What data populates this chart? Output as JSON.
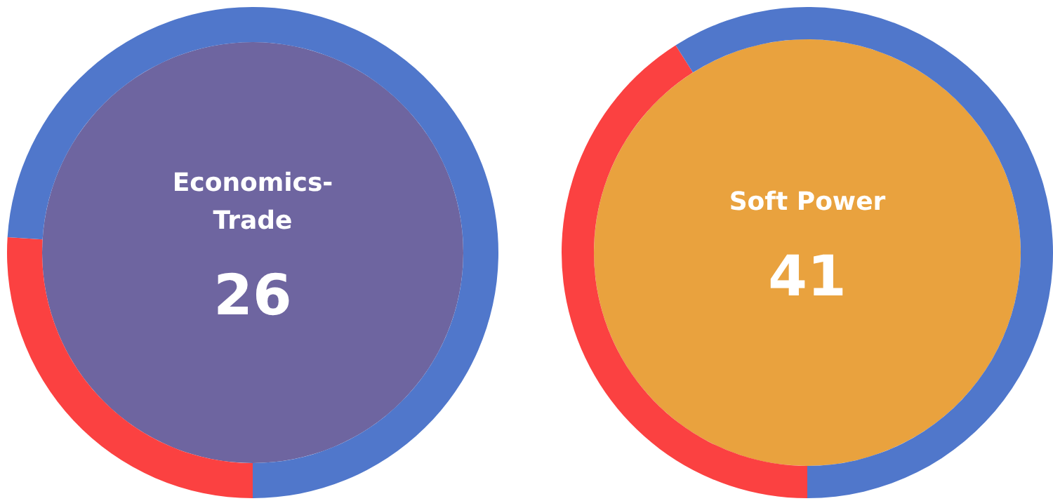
{
  "chart_data": [
    {
      "type": "donut",
      "title": "Economics-Trade",
      "categories": [
        null,
        null
      ],
      "values": [
        26,
        74
      ],
      "colors": [
        "#fb4141",
        "#5077cb"
      ],
      "annotations": [
        "26"
      ]
    },
    {
      "type": "donut",
      "title": "Soft Power",
      "categories": [
        null,
        null
      ],
      "values": [
        41,
        59
      ],
      "colors": [
        "#fb4141",
        "#5077cb"
      ],
      "annotations": [
        "41"
      ]
    }
  ]
}
